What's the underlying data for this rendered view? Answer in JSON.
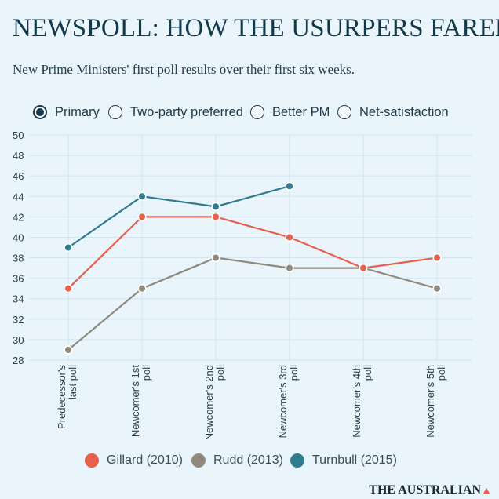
{
  "title": "NEWSPOLL: HOW THE USURPERS FARED",
  "subtitle": "New Prime Ministers' first poll results over their first six weeks.",
  "tabs": [
    {
      "label": "Primary",
      "selected": true
    },
    {
      "label": "Two-party preferred",
      "selected": false
    },
    {
      "label": "Better PM",
      "selected": false
    },
    {
      "label": "Net-satisfaction",
      "selected": false
    }
  ],
  "chart_data": {
    "type": "line",
    "title": "Primary",
    "categories": [
      "Predecessor's last poll",
      "Newcomer's 1st poll",
      "Newcomer's 2nd poll",
      "Newcomer's 3rd poll",
      "Newcomer's 4th poll",
      "Newcomer's 5th poll"
    ],
    "category_lines": [
      [
        "Predecessor's",
        "last poll"
      ],
      [
        "Newcomer's 1st",
        "poll"
      ],
      [
        "Newcomer's 2nd",
        "poll"
      ],
      [
        "Newcomer's 3rd",
        "poll"
      ],
      [
        "Newcomer's 4th",
        "poll"
      ],
      [
        "Newcomer's 5th",
        "poll"
      ]
    ],
    "ylim": [
      28,
      50
    ],
    "yticks": [
      28,
      30,
      32,
      34,
      36,
      38,
      40,
      42,
      44,
      46,
      48,
      50
    ],
    "xlabel": "",
    "ylabel": "",
    "grid": true,
    "series": [
      {
        "name": "Gillard (2010)",
        "color": "#e8604c",
        "values": [
          35,
          42,
          42,
          40,
          37,
          38
        ]
      },
      {
        "name": "Rudd (2013)",
        "color": "#8f8a7b",
        "values": [
          29,
          35,
          38,
          37,
          37,
          35
        ]
      },
      {
        "name": "Turnbull (2015)",
        "color": "#2f7b90",
        "values": [
          39,
          44,
          43,
          45,
          null,
          null
        ]
      }
    ]
  },
  "legend": [
    {
      "label": "Gillard (2010)",
      "color": "#e8604c"
    },
    {
      "label": "Rudd (2013)",
      "color": "#8f8a7b"
    },
    {
      "label": "Turnbull (2015)",
      "color": "#2f7b90"
    }
  ],
  "brand": "THE AUSTRALIAN",
  "colors": {
    "accent": "#e8604c",
    "title": "#12394a",
    "background": "#eaf4fb"
  }
}
